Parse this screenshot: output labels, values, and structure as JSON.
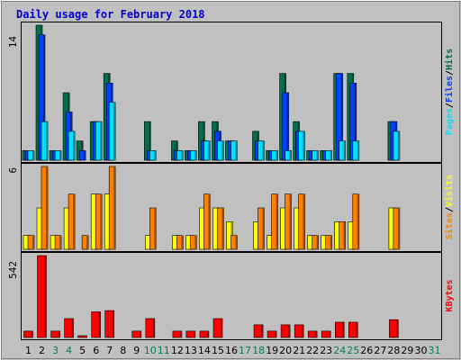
{
  "chart_data": {
    "type": "bar",
    "title": "Daily usage for February 2018",
    "colors": {
      "background": "#C0C0C0",
      "panel_border": "#000000",
      "title": "#0000D0",
      "hits": "#007050",
      "files": "#0040FF",
      "pages": "#00E0FF",
      "visits": "#FFFF00",
      "sites": "#FF8000",
      "kbytes": "#FF0000",
      "weekend_label": "#00804C",
      "weekday_label": "#000000"
    },
    "days": [
      "1",
      "2",
      "3",
      "4",
      "5",
      "6",
      "7",
      "8",
      "9",
      "10",
      "11",
      "12",
      "13",
      "14",
      "15",
      "16",
      "17",
      "18",
      "19",
      "20",
      "21",
      "22",
      "23",
      "24",
      "25",
      "26",
      "27",
      "28",
      "29",
      "30",
      "31"
    ],
    "weekend_days": [
      3,
      4,
      10,
      11,
      17,
      18,
      24,
      25,
      31
    ],
    "panels": [
      {
        "id": "hits_files_pages",
        "ymax_label": "14",
        "ymax": 14,
        "legend": [
          "Pages",
          "Files",
          "Hits"
        ],
        "legend_colors": [
          "#00E0FF",
          "#0040FF",
          "#007050"
        ],
        "series": [
          {
            "name": "Hits",
            "color": "#007050",
            "values": [
              1,
              14,
              1,
              7,
              2,
              4,
              9,
              0,
              0,
              4,
              0,
              2,
              1,
              4,
              4,
              2,
              0,
              3,
              1,
              9,
              4,
              1,
              1,
              9,
              9,
              0,
              0,
              4,
              0,
              0,
              0
            ]
          },
          {
            "name": "Files",
            "color": "#0040FF",
            "values": [
              1,
              13,
              1,
              5,
              1,
              4,
              8,
              0,
              0,
              1,
              0,
              1,
              1,
              2,
              3,
              2,
              0,
              2,
              1,
              7,
              3,
              1,
              1,
              9,
              8,
              0,
              0,
              4,
              0,
              0,
              0
            ]
          },
          {
            "name": "Pages",
            "color": "#00E0FF",
            "values": [
              1,
              4,
              1,
              3,
              0,
              4,
              6,
              0,
              0,
              1,
              0,
              1,
              1,
              2,
              2,
              2,
              0,
              2,
              1,
              1,
              3,
              1,
              1,
              2,
              2,
              0,
              0,
              3,
              0,
              0,
              0
            ]
          }
        ]
      },
      {
        "id": "visits_sites",
        "ymax_label": "6",
        "ymax": 6,
        "legend": [
          "Sites",
          "Visits"
        ],
        "legend_colors": [
          "#FF8000",
          "#FFFF00"
        ],
        "series": [
          {
            "name": "Visits",
            "color": "#FFFF00",
            "values": [
              1,
              3,
              1,
              3,
              0,
              4,
              4,
              0,
              0,
              1,
              0,
              1,
              1,
              3,
              3,
              2,
              0,
              2,
              1,
              3,
              3,
              1,
              1,
              2,
              2,
              0,
              0,
              3,
              0,
              0,
              0
            ]
          },
          {
            "name": "Sites",
            "color": "#FF8000",
            "values": [
              1,
              6,
              1,
              4,
              1,
              4,
              6,
              0,
              0,
              3,
              0,
              1,
              1,
              4,
              3,
              1,
              0,
              3,
              4,
              4,
              4,
              1,
              1,
              2,
              4,
              0,
              0,
              3,
              0,
              0,
              0
            ]
          }
        ]
      },
      {
        "id": "kbytes",
        "ymax_label": "542",
        "ymax": 542,
        "legend": [
          "KBytes"
        ],
        "legend_colors": [
          "#FF0000"
        ],
        "series": [
          {
            "name": "KBytes",
            "color": "#FF0000",
            "values": [
              42,
              542,
              42,
              125,
              4,
              170,
              178,
              0,
              42,
              125,
              0,
              42,
              42,
              42,
              125,
              0,
              0,
              84,
              42,
              84,
              84,
              42,
              42,
              101,
              101,
              0,
              0,
              118,
              0,
              0,
              0
            ]
          }
        ]
      }
    ]
  }
}
